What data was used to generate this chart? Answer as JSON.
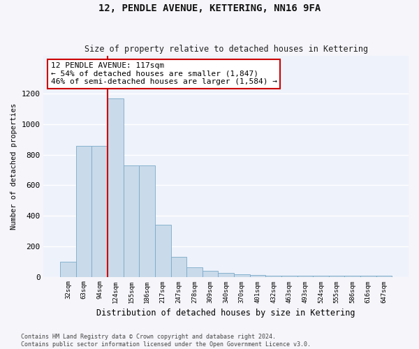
{
  "title": "12, PENDLE AVENUE, KETTERING, NN16 9FA",
  "subtitle": "Size of property relative to detached houses in Kettering",
  "xlabel": "Distribution of detached houses by size in Kettering",
  "ylabel": "Number of detached properties",
  "categories": [
    "32sqm",
    "63sqm",
    "94sqm",
    "124sqm",
    "155sqm",
    "186sqm",
    "217sqm",
    "247sqm",
    "278sqm",
    "309sqm",
    "340sqm",
    "370sqm",
    "401sqm",
    "432sqm",
    "463sqm",
    "493sqm",
    "524sqm",
    "555sqm",
    "586sqm",
    "616sqm",
    "647sqm"
  ],
  "values": [
    100,
    860,
    860,
    1170,
    730,
    730,
    340,
    130,
    60,
    40,
    25,
    15,
    10,
    5,
    5,
    5,
    5,
    5,
    5,
    5,
    5
  ],
  "bar_color": "#c9daea",
  "bar_edge_color": "#7aaac8",
  "background_color": "#eef2fb",
  "grid_color": "#ffffff",
  "vline_x": 3,
  "vline_color": "#cc0000",
  "annotation_text": "12 PENDLE AVENUE: 117sqm\n← 54% of detached houses are smaller (1,847)\n46% of semi-detached houses are larger (1,584) →",
  "annotation_box_facecolor": "#ffffff",
  "annotation_box_edgecolor": "#cc0000",
  "ylim": [
    0,
    1450
  ],
  "yticks": [
    0,
    200,
    400,
    600,
    800,
    1000,
    1200
  ],
  "footer_line1": "Contains HM Land Registry data © Crown copyright and database right 2024.",
  "footer_line2": "Contains public sector information licensed under the Open Government Licence v3.0."
}
